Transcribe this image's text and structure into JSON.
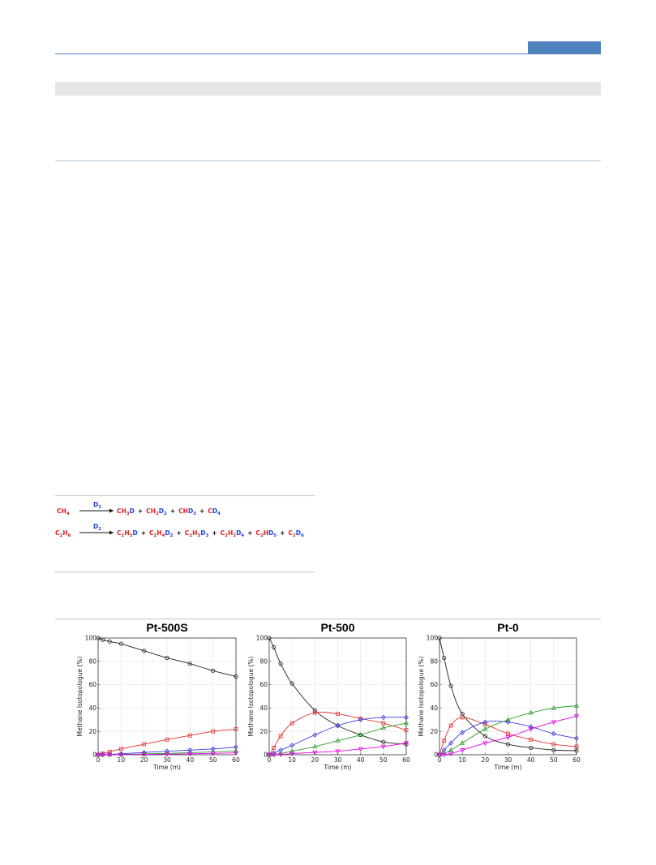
{
  "scheme": {
    "reagent": "D",
    "reagent_sub": "2",
    "row1": [
      [
        [
          "C",
          "#e02020"
        ],
        [
          "H",
          "#e02020"
        ],
        [
          "4",
          "#e02020",
          1
        ]
      ],
      [
        [
          "C",
          "#e02020"
        ],
        [
          "H",
          "#e02020"
        ],
        [
          "3",
          "#e02020",
          1
        ],
        [
          "D",
          "#1e40e6"
        ]
      ],
      [
        [
          "+",
          "#111"
        ]
      ],
      [
        [
          "C",
          "#e02020"
        ],
        [
          "H",
          "#e02020"
        ],
        [
          "2",
          "#e02020",
          1
        ],
        [
          "D",
          "#1e40e6"
        ],
        [
          "2",
          "#1e40e6",
          1
        ]
      ],
      [
        [
          "+",
          "#111"
        ]
      ],
      [
        [
          "C",
          "#e02020"
        ],
        [
          "H",
          "#e02020"
        ],
        [
          "D",
          "#1e40e6"
        ],
        [
          "3",
          "#1e40e6",
          1
        ]
      ],
      [
        [
          "+",
          "#111"
        ]
      ],
      [
        [
          "C",
          "#e02020"
        ],
        [
          "D",
          "#1e40e6"
        ],
        [
          "4",
          "#1e40e6",
          1
        ]
      ]
    ],
    "row2": [
      [
        [
          "C",
          "#e02020"
        ],
        [
          "2",
          "#e02020",
          1
        ],
        [
          "H",
          "#e02020"
        ],
        [
          "6",
          "#e02020",
          1
        ]
      ],
      [
        [
          "C",
          "#e02020"
        ],
        [
          "2",
          "#e02020",
          1
        ],
        [
          "H",
          "#e02020"
        ],
        [
          "5",
          "#e02020",
          1
        ],
        [
          "D",
          "#1e40e6"
        ]
      ],
      [
        [
          "+",
          "#111"
        ]
      ],
      [
        [
          "C",
          "#e02020"
        ],
        [
          "2",
          "#e02020",
          1
        ],
        [
          "H",
          "#e02020"
        ],
        [
          "4",
          "#e02020",
          1
        ],
        [
          "D",
          "#1e40e6"
        ],
        [
          "2",
          "#1e40e6",
          1
        ]
      ],
      [
        [
          "+",
          "#111"
        ]
      ],
      [
        [
          "C",
          "#e02020"
        ],
        [
          "2",
          "#e02020",
          1
        ],
        [
          "H",
          "#e02020"
        ],
        [
          "3",
          "#e02020",
          1
        ],
        [
          "D",
          "#1e40e6"
        ],
        [
          "3",
          "#1e40e6",
          1
        ]
      ],
      [
        [
          "+",
          "#111"
        ]
      ],
      [
        [
          "C",
          "#e02020"
        ],
        [
          "2",
          "#e02020",
          1
        ],
        [
          "H",
          "#e02020"
        ],
        [
          "2",
          "#e02020",
          1
        ],
        [
          "D",
          "#1e40e6"
        ],
        [
          "4",
          "#1e40e6",
          1
        ]
      ],
      [
        [
          "+",
          "#111"
        ]
      ],
      [
        [
          "C",
          "#e02020"
        ],
        [
          "2",
          "#e02020",
          1
        ],
        [
          "H",
          "#e02020"
        ],
        [
          "D",
          "#1e40e6"
        ],
        [
          "5",
          "#1e40e6",
          1
        ]
      ],
      [
        [
          "+",
          "#111"
        ]
      ],
      [
        [
          "C",
          "#e02020"
        ],
        [
          "2",
          "#e02020",
          1
        ],
        [
          "D",
          "#1e40e6"
        ],
        [
          "6",
          "#1e40e6",
          1
        ]
      ]
    ]
  },
  "chart_data": [
    {
      "type": "line",
      "title": "Pt-500S",
      "xlabel": "Time (m)",
      "ylabel": "Methane Isotopologue (%)",
      "xlim": [
        0,
        60
      ],
      "ylim": [
        0,
        100
      ],
      "xticks": [
        0,
        10,
        20,
        30,
        40,
        50,
        60
      ],
      "yticks": [
        0,
        20,
        40,
        60,
        80,
        100
      ],
      "grid": true,
      "series": [
        {
          "color": "#222222",
          "marker": "circle",
          "x": [
            0,
            2,
            5,
            10,
            20,
            30,
            40,
            50,
            60
          ],
          "y": [
            100,
            98.5,
            97,
            95,
            89,
            83,
            78,
            72,
            67
          ]
        },
        {
          "color": "#e03030",
          "marker": "square",
          "x": [
            0,
            2,
            5,
            10,
            20,
            30,
            40,
            50,
            60
          ],
          "y": [
            0,
            1,
            2.5,
            5,
            9,
            13,
            16.5,
            20,
            22
          ]
        },
        {
          "color": "#3a3ae6",
          "marker": "diamond",
          "x": [
            0,
            2,
            5,
            10,
            20,
            30,
            40,
            50,
            60
          ],
          "y": [
            0,
            0.2,
            0.4,
            0.8,
            2,
            3,
            4,
            5,
            6.5
          ]
        },
        {
          "color": "#2ca02c",
          "marker": "triangle-up",
          "x": [
            0,
            2,
            5,
            10,
            20,
            30,
            40,
            50,
            60
          ],
          "y": [
            0,
            0,
            0.1,
            0.3,
            0.7,
            1.2,
            1.8,
            2.5,
            3.2
          ]
        },
        {
          "color": "#e600e6",
          "marker": "triangle-down",
          "x": [
            0,
            2,
            5,
            10,
            20,
            30,
            40,
            50,
            60
          ],
          "y": [
            0,
            0,
            0,
            0.1,
            0.3,
            0.5,
            0.8,
            1.2,
            1.6
          ]
        }
      ]
    },
    {
      "type": "line",
      "title": "Pt-500",
      "xlabel": "Time (m)",
      "ylabel": "Methane Isotopologue (%)",
      "xlim": [
        0,
        60
      ],
      "ylim": [
        0,
        100
      ],
      "xticks": [
        0,
        10,
        20,
        30,
        40,
        50,
        60
      ],
      "yticks": [
        0,
        20,
        40,
        60,
        80,
        100
      ],
      "grid": true,
      "series": [
        {
          "color": "#222222",
          "marker": "circle",
          "x": [
            0,
            2,
            5,
            10,
            20,
            30,
            40,
            50,
            60
          ],
          "y": [
            100,
            92,
            78,
            61,
            38,
            25,
            17,
            11,
            9
          ]
        },
        {
          "color": "#e03030",
          "marker": "square",
          "x": [
            0,
            2,
            5,
            10,
            20,
            30,
            40,
            50,
            60
          ],
          "y": [
            0,
            6,
            16,
            27,
            36,
            35,
            31,
            27,
            21
          ]
        },
        {
          "color": "#3a3ae6",
          "marker": "diamond",
          "x": [
            0,
            2,
            5,
            10,
            20,
            30,
            40,
            50,
            60
          ],
          "y": [
            0,
            1.5,
            4,
            8,
            17,
            25,
            30,
            32,
            32
          ]
        },
        {
          "color": "#2ca02c",
          "marker": "triangle-up",
          "x": [
            0,
            2,
            5,
            10,
            20,
            30,
            40,
            50,
            60
          ],
          "y": [
            0,
            0.3,
            1,
            3,
            7,
            12,
            17,
            23,
            27
          ]
        },
        {
          "color": "#e600e6",
          "marker": "triangle-down",
          "x": [
            0,
            2,
            5,
            10,
            20,
            30,
            40,
            50,
            60
          ],
          "y": [
            0,
            0,
            0.2,
            1,
            2,
            3,
            5,
            7,
            10
          ]
        }
      ]
    },
    {
      "type": "line",
      "title": "Pt-0",
      "xlabel": "Time (m)",
      "ylabel": "Methane Isotopologue (%)",
      "xlim": [
        0,
        60
      ],
      "ylim": [
        0,
        100
      ],
      "xticks": [
        0,
        10,
        20,
        30,
        40,
        50,
        60
      ],
      "yticks": [
        0,
        20,
        40,
        60,
        80,
        100
      ],
      "grid": true,
      "series": [
        {
          "color": "#222222",
          "marker": "circle",
          "x": [
            0,
            2,
            5,
            10,
            20,
            30,
            40,
            50,
            60
          ],
          "y": [
            100,
            83,
            59,
            35,
            16,
            9,
            6,
            4,
            3.5
          ]
        },
        {
          "color": "#e03030",
          "marker": "square",
          "x": [
            0,
            2,
            5,
            10,
            20,
            30,
            40,
            50,
            60
          ],
          "y": [
            0,
            12,
            25,
            32,
            26,
            18,
            13,
            9,
            7
          ]
        },
        {
          "color": "#3a3ae6",
          "marker": "diamond",
          "x": [
            0,
            2,
            5,
            10,
            20,
            30,
            40,
            50,
            60
          ],
          "y": [
            0,
            4,
            10,
            19,
            28,
            28,
            24,
            18,
            14
          ]
        },
        {
          "color": "#2ca02c",
          "marker": "triangle-up",
          "x": [
            0,
            2,
            5,
            10,
            20,
            30,
            40,
            50,
            60
          ],
          "y": [
            0,
            1,
            4,
            10,
            22,
            30,
            36,
            40,
            42
          ]
        },
        {
          "color": "#e600e6",
          "marker": "triangle-down",
          "x": [
            0,
            2,
            5,
            10,
            20,
            30,
            40,
            50,
            60
          ],
          "y": [
            0,
            0,
            1,
            4,
            10,
            15,
            22,
            28,
            33
          ]
        }
      ]
    }
  ]
}
